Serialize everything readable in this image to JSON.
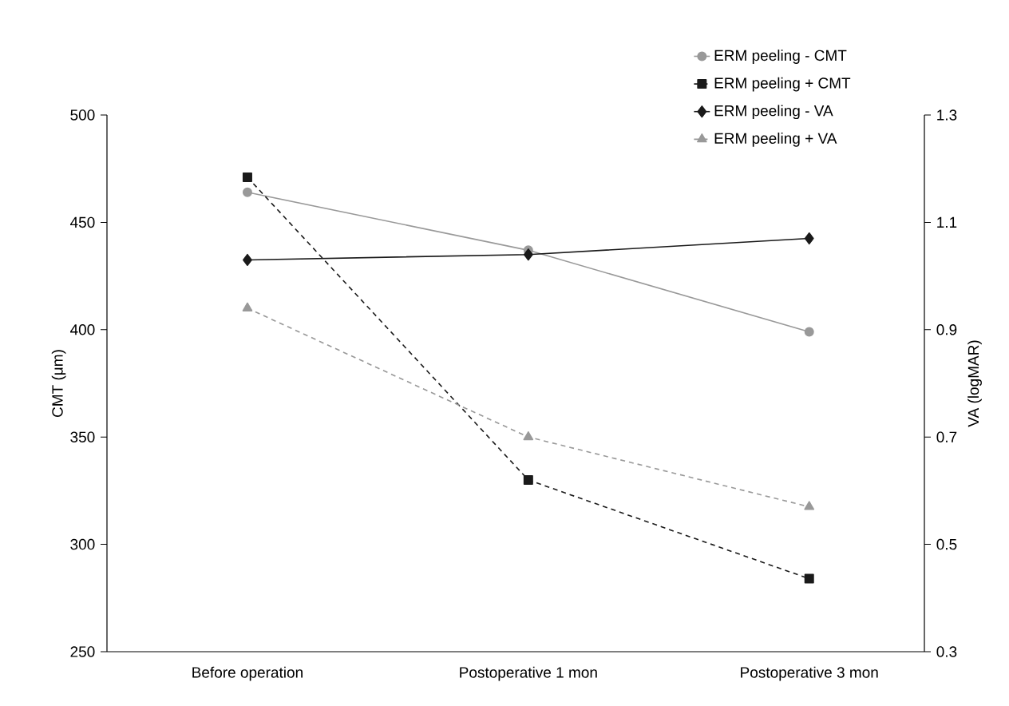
{
  "chart_data": {
    "type": "line",
    "categories": [
      "Before operation",
      "Postoperative 1 mon",
      "Postoperative 3 mon"
    ],
    "ylabel": "CMT (μm)",
    "y2label": "VA (logMAR)",
    "ylim": [
      250,
      500
    ],
    "yticks": [
      250,
      300,
      350,
      400,
      450,
      500
    ],
    "y2lim": [
      0.3,
      1.3
    ],
    "y2ticks": [
      {
        "value": 0.3,
        "label": "0.3"
      },
      {
        "value": 0.5,
        "label": "0.5"
      },
      {
        "value": 0.7,
        "label": "0.7"
      },
      {
        "value": 0.9,
        "label": "0.9"
      },
      {
        "value": 1.1,
        "label": "1.1"
      },
      {
        "value": 1.3,
        "label": "1.3"
      }
    ],
    "legend": "top right",
    "grid": false,
    "series": [
      {
        "name": "ERM peeling - CMT",
        "color": "#999999",
        "values": [
          464,
          437,
          399
        ],
        "marker": "circle",
        "line_style": "solid"
      },
      {
        "name": "ERM peeling + CMT",
        "color": "#1a1a1a",
        "values": [
          471,
          330,
          284
        ],
        "marker": "square",
        "line_style": "dashed"
      },
      {
        "name": "ERM peeling - VA",
        "color": "#1a1a1a",
        "values": [
          1.03,
          1.04,
          1.07
        ],
        "marker": "diamond",
        "line_style": "solid",
        "axis": "y2"
      },
      {
        "name": "ERM peeling + VA",
        "color": "#999999",
        "values": [
          0.94,
          0.7,
          0.57
        ],
        "marker": "triangle",
        "line_style": "dashed",
        "axis": "y2"
      }
    ]
  }
}
